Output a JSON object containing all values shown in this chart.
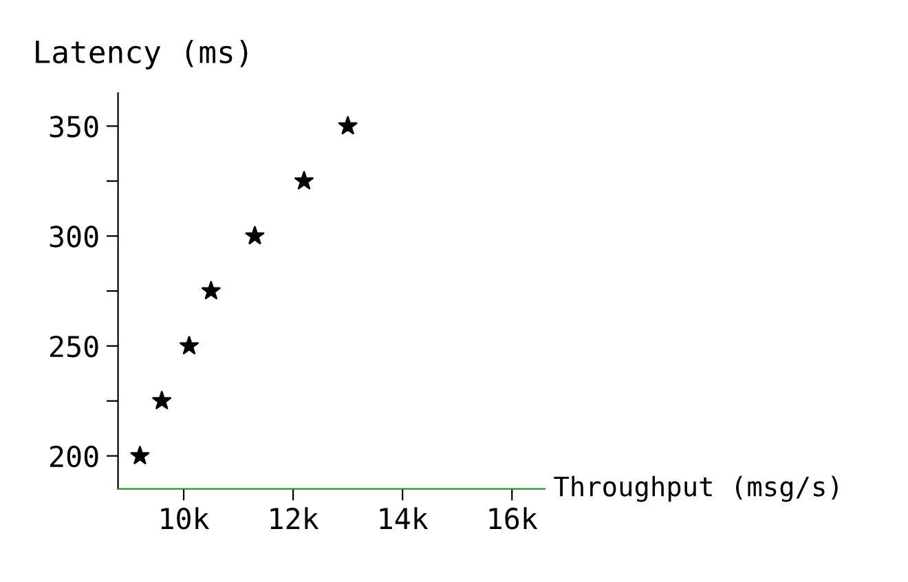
{
  "chart_data": {
    "type": "scatter",
    "xlabel": "Throughput (msg/s)",
    "ylabel": "Latency (ms)",
    "x": [
      9200,
      9600,
      10100,
      10500,
      11300,
      12200,
      13000
    ],
    "values": [
      200,
      225,
      250,
      275,
      300,
      325,
      350
    ],
    "color": "#000000",
    "marker": "star",
    "xlim": [
      8800,
      16600
    ],
    "xticks": [
      {
        "value": 10000,
        "label": "10k"
      },
      {
        "value": 12000,
        "label": "12k"
      },
      {
        "value": 14000,
        "label": "14k"
      },
      {
        "value": 16000,
        "label": "16k"
      }
    ],
    "ylim": [
      185,
      365
    ],
    "yticks": [
      200,
      {
        "value": 225,
        "label": null
      },
      250,
      {
        "value": 275,
        "label": null
      },
      300,
      {
        "value": 325,
        "label": null
      },
      350
    ],
    "grid": false
  }
}
